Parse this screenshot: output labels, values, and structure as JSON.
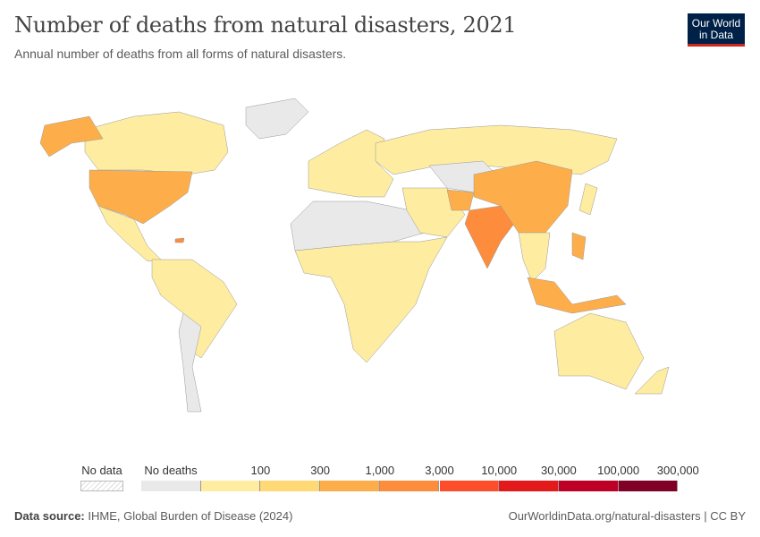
{
  "header": {
    "title": "Number of deaths from natural disasters, 2021",
    "subtitle": "Annual number of deaths from all forms of natural disasters.",
    "logo": "Our World in Data"
  },
  "legend": {
    "no_data_label": "No data",
    "no_deaths_label": "No deaths",
    "ticks": [
      "100",
      "300",
      "1,000",
      "3,000",
      "10,000",
      "30,000",
      "100,000",
      "300,000"
    ],
    "colors": {
      "no_data": "#ffffff",
      "no_deaths": "#e9e9e9",
      "bins": [
        "#feeca0",
        "#fed976",
        "#fdae4b",
        "#fd8d3c",
        "#fc4e2a",
        "#e31a1c",
        "#bd0026",
        "#800026"
      ]
    }
  },
  "map_data": {
    "type": "choropleth",
    "year": "2021",
    "regions": [
      {
        "name": "North America (Canada)",
        "bin": 0
      },
      {
        "name": "United States",
        "bin": 2
      },
      {
        "name": "Mexico & Central America",
        "bin": 0
      },
      {
        "name": "South America",
        "bin": 0
      },
      {
        "name": "Chile & Argentina",
        "bin": -1
      },
      {
        "name": "Greenland",
        "bin": -1
      },
      {
        "name": "Europe",
        "bin": 0
      },
      {
        "name": "Russia",
        "bin": 0
      },
      {
        "name": "Africa",
        "bin": 0
      },
      {
        "name": "North Africa / Sahara",
        "bin": -1
      },
      {
        "name": "Middle East",
        "bin": 0
      },
      {
        "name": "Central Asia",
        "bin": -1
      },
      {
        "name": "Afghanistan",
        "bin": 2
      },
      {
        "name": "India",
        "bin": 3
      },
      {
        "name": "China",
        "bin": 2
      },
      {
        "name": "Southeast Asia",
        "bin": 0
      },
      {
        "name": "Philippines",
        "bin": 2
      },
      {
        "name": "Indonesia",
        "bin": 2
      },
      {
        "name": "Japan",
        "bin": 0
      },
      {
        "name": "Australia",
        "bin": 0
      },
      {
        "name": "New Zealand",
        "bin": 0
      },
      {
        "name": "Haiti",
        "bin": 3
      }
    ]
  },
  "footer": {
    "source_label": "Data source:",
    "source": "IHME, Global Burden of Disease (2024)",
    "url": "OurWorldinData.org/natural-disasters | CC BY"
  }
}
